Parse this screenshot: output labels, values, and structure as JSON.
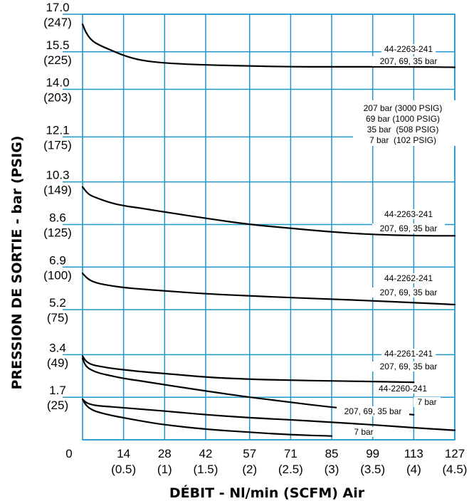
{
  "chart_data": {
    "type": "line",
    "xlabel": "DÉBIT - Nl/min (SCFM) Air",
    "ylabel": "PRESSION DE SORTIE - bar (PSIG)",
    "xlim": [
      0,
      127
    ],
    "ylim": [
      0,
      17.0
    ],
    "grid": true,
    "grid_color": "#2196c8",
    "x_ticks": [
      {
        "value": 14,
        "label": "14",
        "sub": "(0.5)"
      },
      {
        "value": 28,
        "label": "28",
        "sub": "(1)"
      },
      {
        "value": 42,
        "label": "42",
        "sub": "(1.5)"
      },
      {
        "value": 57,
        "label": "57",
        "sub": "(2)"
      },
      {
        "value": 71,
        "label": "71",
        "sub": "(2.5)"
      },
      {
        "value": 85,
        "label": "85",
        "sub": "(3)"
      },
      {
        "value": 99,
        "label": "99",
        "sub": "(3.5)"
      },
      {
        "value": 113,
        "label": "113",
        "sub": "(4)"
      },
      {
        "value": 127,
        "label": "127",
        "sub": "(4.5)"
      }
    ],
    "x_origin_label": "0",
    "y_ticks": [
      {
        "value": 17.0,
        "label": "17.0",
        "sub": "(247)"
      },
      {
        "value": 15.5,
        "label": "15.5",
        "sub": "(225)"
      },
      {
        "value": 14.0,
        "label": "14.0",
        "sub": "(203)"
      },
      {
        "value": 12.1,
        "label": "12.1",
        "sub": "(175)"
      },
      {
        "value": 10.3,
        "label": "10.3",
        "sub": "(149)"
      },
      {
        "value": 8.6,
        "label": "8.6",
        "sub": "(125)"
      },
      {
        "value": 6.9,
        "label": "6.9",
        "sub": "(100)"
      },
      {
        "value": 5.2,
        "label": "5.2",
        "sub": "(75)"
      },
      {
        "value": 3.4,
        "label": "3.4",
        "sub": "(49)"
      },
      {
        "value": 1.7,
        "label": "1.7",
        "sub": "(25)"
      }
    ],
    "legend_lines": [
      "207 bar (3000 PSIG)",
      "69 bar (1000 PSIG)",
      "35 bar  (508 PSIG)",
      "7 bar  (102 PSIG)"
    ],
    "series": [
      {
        "labels": [
          "44-2263-241",
          "207, 69, 35 bar"
        ],
        "x": [
          0,
          1,
          3,
          6,
          10,
          14,
          20,
          28,
          40,
          57,
          71,
          85,
          99,
          113,
          127
        ],
        "y": [
          16.6,
          16.3,
          15.95,
          15.75,
          15.55,
          15.35,
          15.15,
          15.05,
          14.98,
          14.93,
          14.9,
          14.9,
          14.9,
          14.9,
          14.88
        ]
      },
      {
        "labels": [
          "44-2263-241",
          "207, 69, 35 bar"
        ],
        "x": [
          0,
          2,
          5,
          10,
          14,
          20,
          28,
          42,
          57,
          71,
          85,
          99,
          113,
          127
        ],
        "y": [
          10.1,
          9.8,
          9.65,
          9.45,
          9.35,
          9.25,
          9.1,
          8.85,
          8.6,
          8.45,
          8.3,
          8.2,
          8.15,
          8.15
        ]
      },
      {
        "labels": [
          "44-2262-241",
          "207, 69, 35 bar"
        ],
        "x": [
          0,
          2,
          5,
          10,
          14,
          20,
          28,
          42,
          57,
          71,
          85,
          99,
          113,
          127
        ],
        "y": [
          6.65,
          6.4,
          6.25,
          6.15,
          6.08,
          6.02,
          5.95,
          5.83,
          5.75,
          5.68,
          5.62,
          5.55,
          5.48,
          5.4
        ]
      },
      {
        "labels": [
          "44-2261-241",
          "207, 69, 35 bar"
        ],
        "x": [
          0,
          1,
          3,
          6,
          10,
          14,
          20,
          28,
          42,
          57,
          71,
          85,
          99,
          113
        ],
        "y": [
          3.35,
          3.15,
          3.0,
          2.93,
          2.85,
          2.8,
          2.72,
          2.65,
          2.5,
          2.42,
          2.38,
          2.35,
          2.33,
          2.3
        ]
      },
      {
        "labels": [
          "44-2260-241",
          "7 bar"
        ],
        "x": [
          0,
          1,
          3,
          6,
          10,
          14,
          20,
          28,
          42,
          57,
          71,
          85,
          99,
          113
        ],
        "y": [
          3.25,
          2.95,
          2.78,
          2.65,
          2.55,
          2.45,
          2.35,
          2.2,
          1.95,
          1.7,
          1.5,
          1.3,
          1.15,
          1.0
        ]
      },
      {
        "labels": [
          "207, 69, 35 bar"
        ],
        "x": [
          0,
          1,
          3,
          6,
          14,
          28,
          42,
          57,
          71,
          85,
          99,
          113,
          127
        ],
        "y": [
          1.62,
          1.5,
          1.4,
          1.35,
          1.28,
          1.15,
          1.0,
          0.88,
          0.8,
          0.7,
          0.6,
          0.48,
          0.38
        ]
      },
      {
        "labels": [
          "7 bar"
        ],
        "x": [
          0,
          1,
          3,
          6,
          10,
          14,
          20,
          28,
          42,
          57,
          71,
          85
        ],
        "y": [
          1.62,
          1.4,
          1.2,
          1.08,
          0.97,
          0.88,
          0.75,
          0.6,
          0.42,
          0.3,
          0.2,
          0.15
        ]
      }
    ]
  }
}
